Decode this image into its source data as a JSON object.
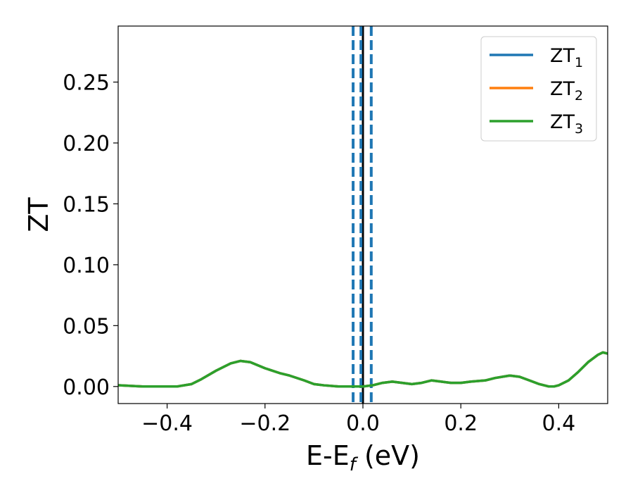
{
  "chart_data": {
    "type": "line",
    "title": "",
    "xlabel": "E-E",
    "xlabel_subscript": "f",
    "xlabel_suffix": " (eV)",
    "ylabel": "ZT",
    "xlim": [
      -0.5,
      0.5
    ],
    "ylim": [
      -0.014,
      0.296
    ],
    "x_ticks": [
      {
        "value": -0.4,
        "label": "−0.4"
      },
      {
        "value": -0.2,
        "label": "−0.2"
      },
      {
        "value": 0.0,
        "label": "0.0"
      },
      {
        "value": 0.2,
        "label": "0.2"
      },
      {
        "value": 0.4,
        "label": "0.4"
      }
    ],
    "y_ticks": [
      {
        "value": 0.0,
        "label": "0.00"
      },
      {
        "value": 0.05,
        "label": "0.05"
      },
      {
        "value": 0.1,
        "label": "0.10"
      },
      {
        "value": 0.15,
        "label": "0.15"
      },
      {
        "value": 0.2,
        "label": "0.20"
      },
      {
        "value": 0.25,
        "label": "0.25"
      }
    ],
    "grid": false,
    "legend_position": "top-right",
    "series": [
      {
        "name": "ZT",
        "subscript": "1",
        "color": "#1f77b4",
        "x": [
          -0.5,
          -0.45,
          -0.4,
          -0.38,
          -0.35,
          -0.33,
          -0.3,
          -0.27,
          -0.25,
          -0.23,
          -0.2,
          -0.17,
          -0.15,
          -0.12,
          -0.1,
          -0.08,
          -0.05,
          -0.03,
          -0.01,
          0.0,
          0.02,
          0.04,
          0.06,
          0.08,
          0.1,
          0.12,
          0.14,
          0.16,
          0.18,
          0.2,
          0.22,
          0.25,
          0.27,
          0.3,
          0.32,
          0.34,
          0.36,
          0.38,
          0.39,
          0.4,
          0.42,
          0.44,
          0.46,
          0.48,
          0.49,
          0.5
        ],
        "y": [
          0.001,
          0.0,
          0.0,
          0.0,
          0.002,
          0.006,
          0.013,
          0.019,
          0.021,
          0.02,
          0.015,
          0.011,
          0.009,
          0.005,
          0.002,
          0.001,
          0.0,
          0.0,
          0.0,
          0.0,
          0.001,
          0.003,
          0.004,
          0.003,
          0.002,
          0.003,
          0.005,
          0.004,
          0.003,
          0.003,
          0.004,
          0.005,
          0.007,
          0.009,
          0.008,
          0.005,
          0.002,
          0.0,
          0.0,
          0.001,
          0.005,
          0.012,
          0.02,
          0.026,
          0.028,
          0.027
        ]
      },
      {
        "name": "ZT",
        "subscript": "2",
        "color": "#ff7f0e",
        "x": [
          -0.5,
          -0.45,
          -0.4,
          -0.38,
          -0.35,
          -0.33,
          -0.3,
          -0.27,
          -0.25,
          -0.23,
          -0.2,
          -0.17,
          -0.15,
          -0.12,
          -0.1,
          -0.08,
          -0.05,
          -0.03,
          -0.01,
          0.0,
          0.02,
          0.04,
          0.06,
          0.08,
          0.1,
          0.12,
          0.14,
          0.16,
          0.18,
          0.2,
          0.22,
          0.25,
          0.27,
          0.3,
          0.32,
          0.34,
          0.36,
          0.38,
          0.39,
          0.4,
          0.42,
          0.44,
          0.46,
          0.48,
          0.49,
          0.5
        ],
        "y": [
          0.001,
          0.0,
          0.0,
          0.0,
          0.002,
          0.006,
          0.013,
          0.019,
          0.021,
          0.02,
          0.015,
          0.011,
          0.009,
          0.005,
          0.002,
          0.001,
          0.0,
          0.0,
          0.0,
          0.0,
          0.001,
          0.003,
          0.004,
          0.003,
          0.002,
          0.003,
          0.005,
          0.004,
          0.003,
          0.003,
          0.004,
          0.005,
          0.007,
          0.009,
          0.008,
          0.005,
          0.002,
          0.0,
          0.0,
          0.001,
          0.005,
          0.012,
          0.02,
          0.026,
          0.028,
          0.027
        ]
      },
      {
        "name": "ZT",
        "subscript": "3",
        "color": "#2ca02c",
        "x": [
          -0.5,
          -0.45,
          -0.4,
          -0.38,
          -0.35,
          -0.33,
          -0.3,
          -0.27,
          -0.25,
          -0.23,
          -0.2,
          -0.17,
          -0.15,
          -0.12,
          -0.1,
          -0.08,
          -0.05,
          -0.03,
          -0.01,
          0.0,
          0.02,
          0.04,
          0.06,
          0.08,
          0.1,
          0.12,
          0.14,
          0.16,
          0.18,
          0.2,
          0.22,
          0.25,
          0.27,
          0.3,
          0.32,
          0.34,
          0.36,
          0.38,
          0.39,
          0.4,
          0.42,
          0.44,
          0.46,
          0.48,
          0.49,
          0.5
        ],
        "y": [
          0.001,
          0.0,
          0.0,
          0.0,
          0.002,
          0.006,
          0.013,
          0.019,
          0.021,
          0.02,
          0.015,
          0.011,
          0.009,
          0.005,
          0.002,
          0.001,
          0.0,
          0.0,
          0.0,
          0.0,
          0.001,
          0.003,
          0.004,
          0.003,
          0.002,
          0.003,
          0.005,
          0.004,
          0.003,
          0.003,
          0.004,
          0.005,
          0.007,
          0.009,
          0.008,
          0.005,
          0.002,
          0.0,
          0.0,
          0.001,
          0.005,
          0.012,
          0.02,
          0.026,
          0.028,
          0.027
        ]
      }
    ],
    "reference_lines": [
      {
        "x": 0.0,
        "color": "#000000",
        "style": "solid"
      },
      {
        "x": -0.02,
        "color": "#1f77b4",
        "style": "dashed"
      },
      {
        "x": -0.004,
        "color": "#1f77b4",
        "style": "dashed"
      },
      {
        "x": 0.017,
        "color": "#1f77b4",
        "style": "dashed"
      }
    ]
  }
}
